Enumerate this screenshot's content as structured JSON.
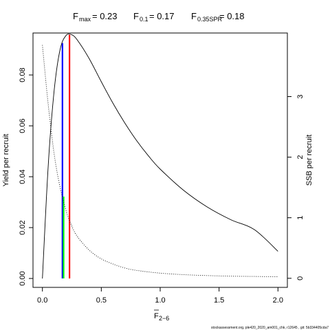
{
  "title": {
    "fmax_label": "F",
    "fmax_sub": "max",
    "fmax_value": "= 0.23",
    "f01_label": "F",
    "f01_sub": "0.1",
    "f01_value": "= 0.17",
    "f35_label": "F",
    "f35_sub": "0.35SPR",
    "f35_value": "= 0.18"
  },
  "footer": "stockassessment.org, ple420_2020_am001_chk, r12645 , git: 5b334405cda7",
  "chart_data": {
    "type": "line",
    "xlabel": "F",
    "xlabel_sub": "2−6",
    "ylabel_left": "Yield per recruit",
    "ylabel_right": "SSB per recruit",
    "xlim": [
      -0.08,
      2.08
    ],
    "ylim_left": [
      -0.0035,
      0.0965
    ],
    "ylim_right": [
      -0.15,
      4.05
    ],
    "x_ticks": [
      {
        "value": 0,
        "label": "0.0"
      },
      {
        "value": 0.5,
        "label": "0.5"
      },
      {
        "value": 1.0,
        "label": "1.0"
      },
      {
        "value": 1.5,
        "label": "1.5"
      },
      {
        "value": 2.0,
        "label": "2.0"
      }
    ],
    "y_ticks_left": [
      {
        "value": 0.0,
        "label": "0.00"
      },
      {
        "value": 0.02,
        "label": "0.02"
      },
      {
        "value": 0.04,
        "label": "0.04"
      },
      {
        "value": 0.06,
        "label": "0.06"
      },
      {
        "value": 0.08,
        "label": "0.08"
      }
    ],
    "y_ticks_right": [
      {
        "value": 0,
        "label": "0"
      },
      {
        "value": 1,
        "label": "1"
      },
      {
        "value": 2,
        "label": "2"
      },
      {
        "value": 3,
        "label": "3"
      }
    ],
    "series": [
      {
        "style": "solid",
        "color": "#000000",
        "axis": "left",
        "x": [
          0,
          0.05,
          0.1,
          0.15,
          0.2,
          0.25,
          0.3,
          0.4,
          0.5,
          0.6,
          0.7,
          0.8,
          0.9,
          1.0,
          1.2,
          1.4,
          1.6,
          1.8,
          2.0
        ],
        "y": [
          0,
          0.045,
          0.074,
          0.09,
          0.0955,
          0.0958,
          0.0935,
          0.0862,
          0.0773,
          0.0688,
          0.0611,
          0.0542,
          0.0482,
          0.043,
          0.0346,
          0.0281,
          0.0231,
          0.0192,
          0.0107
        ]
      },
      {
        "style": "dotted",
        "color": "#000000",
        "axis": "right",
        "x": [
          0,
          0.05,
          0.1,
          0.15,
          0.2,
          0.25,
          0.3,
          0.4,
          0.5,
          0.6,
          0.7,
          0.8,
          1.0,
          1.2,
          1.4,
          1.6,
          1.8,
          2.0
        ],
        "y": [
          3.85,
          2.85,
          2.05,
          1.5,
          1.12,
          0.86,
          0.68,
          0.46,
          0.32,
          0.235,
          0.17,
          0.13,
          0.085,
          0.06,
          0.045,
          0.035,
          0.03,
          0.026
        ]
      }
    ],
    "reference_lines": [
      {
        "name": "F0.1",
        "x": 0.17,
        "y_top": 0.0925,
        "color": "#0000ff"
      },
      {
        "name": "F0.35SPR",
        "x": 0.18,
        "y_top": 0.0322,
        "color": "#00ff00"
      },
      {
        "name": "Fmax",
        "x": 0.23,
        "y_top": 0.0958,
        "color": "#ff0000"
      }
    ]
  }
}
